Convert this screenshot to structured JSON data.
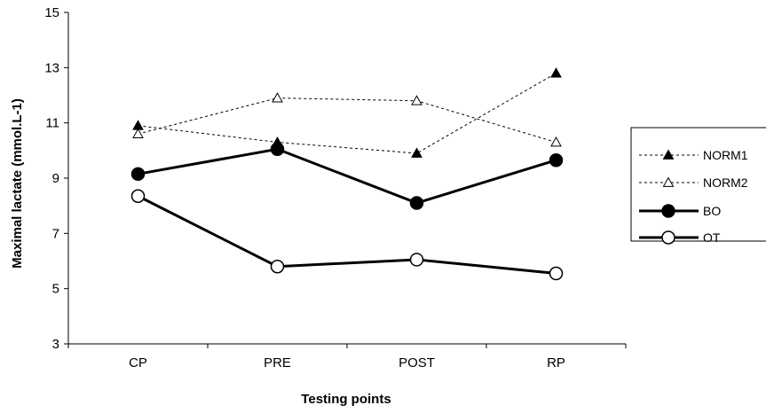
{
  "chart_data": {
    "type": "line",
    "xlabel": "Testing points",
    "ylabel": "Maximal lactate (mmol.L-1)",
    "categories": [
      "CP",
      "PRE",
      "POST",
      "RP"
    ],
    "ylim": [
      3,
      15
    ],
    "yticks": [
      3,
      5,
      7,
      9,
      11,
      13,
      15
    ],
    "grid": false,
    "legend_position": "right",
    "series": [
      {
        "name": "NORM1",
        "values": [
          10.9,
          10.3,
          9.9,
          12.8
        ],
        "line": "dotted",
        "marker": "filled-triangle"
      },
      {
        "name": "NORM2",
        "values": [
          10.6,
          11.9,
          11.8,
          10.3
        ],
        "line": "dotted",
        "marker": "open-triangle"
      },
      {
        "name": "BO",
        "values": [
          9.15,
          10.05,
          8.1,
          9.65
        ],
        "line": "solid-bold",
        "marker": "filled-circle"
      },
      {
        "name": "OT",
        "values": [
          8.35,
          5.8,
          6.05,
          5.55
        ],
        "line": "solid-bold",
        "marker": "open-circle"
      }
    ],
    "colors": {
      "line": "#000000",
      "background": "#ffffff"
    }
  }
}
